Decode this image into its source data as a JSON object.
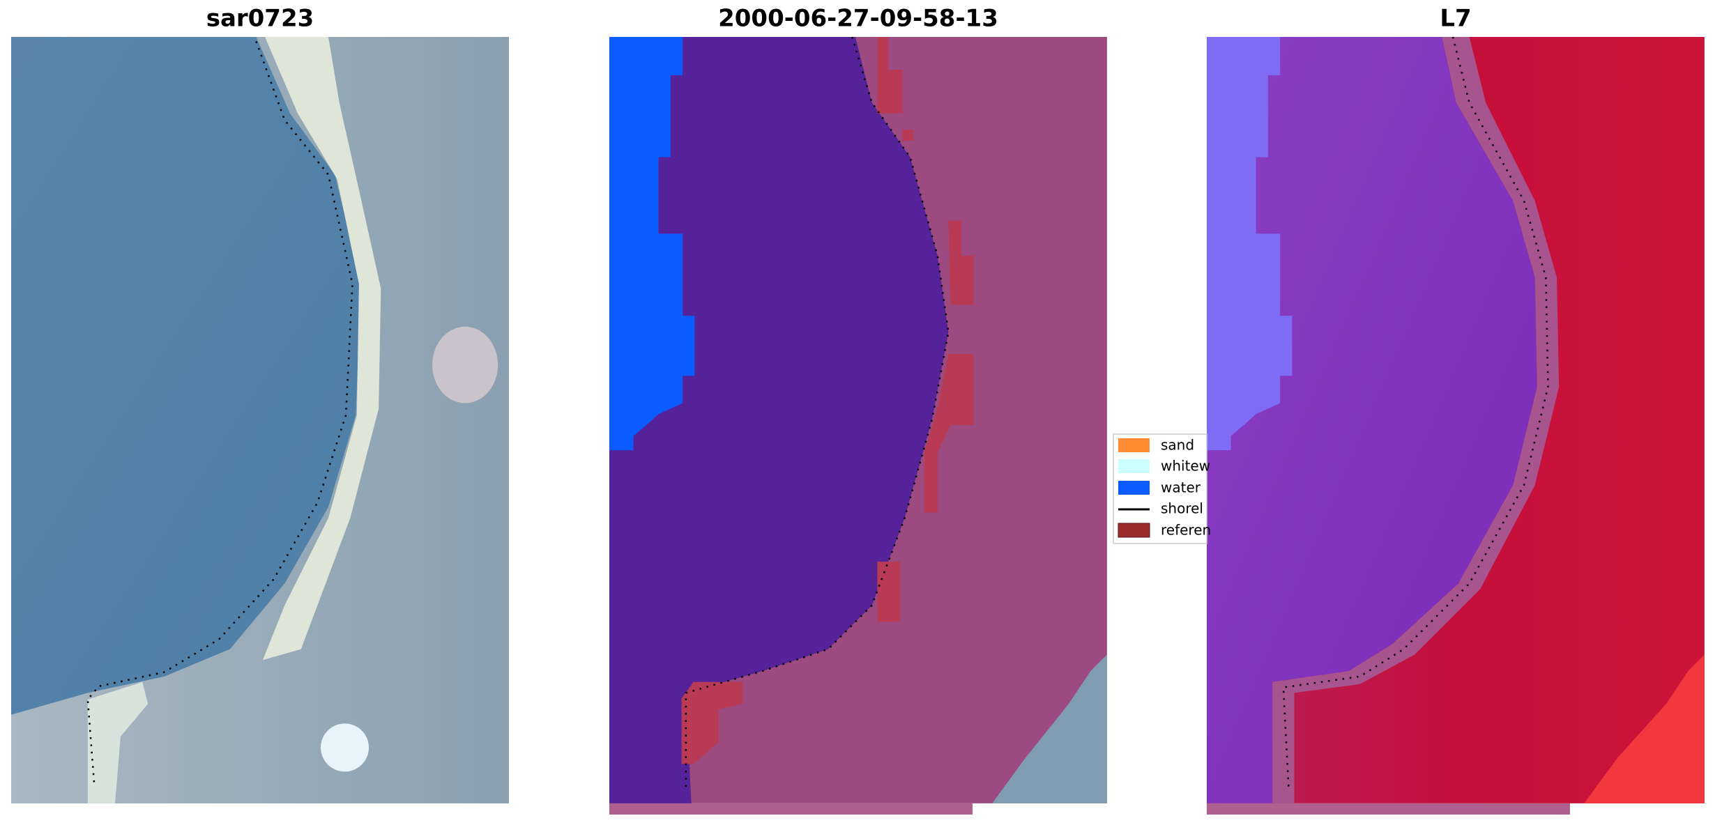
{
  "panels": [
    {
      "title": "sar0723"
    },
    {
      "title": "2000-06-27-09-58-13"
    },
    {
      "title": "L7"
    }
  ],
  "legend": [
    {
      "label": "sand"
    },
    {
      "label": "whitew"
    },
    {
      "label": "water"
    },
    {
      "label": "shorel"
    },
    {
      "label": "referen"
    }
  ]
}
